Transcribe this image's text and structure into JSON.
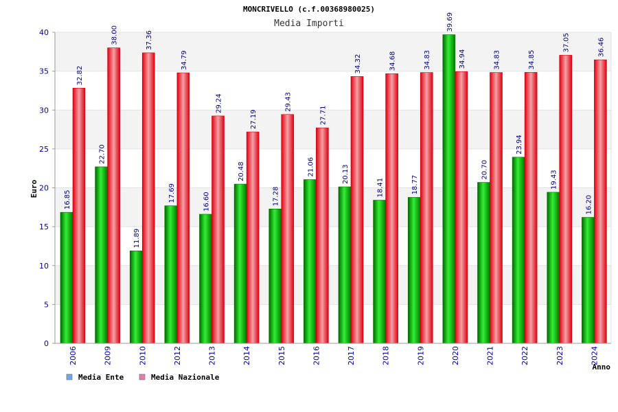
{
  "chart_data": {
    "type": "bar",
    "title": "MONCRIVELLO (c.f.00368980025)",
    "subtitle": "Media Importi",
    "xlabel": "Anno",
    "ylabel": "Euro",
    "ylim": [
      0,
      40
    ],
    "yticks": [
      "0",
      "5",
      "10",
      "15",
      "20",
      "25",
      "30",
      "35",
      "40"
    ],
    "grid": true,
    "legend_position": "bottom-left",
    "categories": [
      "2006",
      "2009",
      "2010",
      "2012",
      "2013",
      "2014",
      "2015",
      "2016",
      "2017",
      "2018",
      "2019",
      "2020",
      "2021",
      "2022",
      "2023",
      "2024"
    ],
    "series": [
      {
        "name": "Media Ente",
        "color": "#00a000",
        "legend_color": "#6fa8e8",
        "values": [
          16.85,
          22.7,
          11.89,
          17.69,
          16.6,
          20.48,
          17.28,
          21.06,
          20.13,
          18.41,
          18.77,
          39.69,
          20.7,
          23.94,
          19.43,
          16.2
        ],
        "labels": [
          "16.85",
          "22.70",
          "11.89",
          "17.69",
          "16.60",
          "20.48",
          "17.28",
          "21.06",
          "20.13",
          "18.41",
          "18.77",
          "39.69",
          "20.70",
          "23.94",
          "19.43",
          "16.20"
        ]
      },
      {
        "name": "Media Nazionale",
        "color": "#e8101a",
        "legend_color": "#e080b0",
        "values": [
          32.82,
          38.0,
          37.36,
          34.79,
          29.24,
          27.19,
          29.43,
          27.71,
          34.32,
          34.68,
          34.83,
          34.94,
          34.83,
          34.85,
          37.05,
          36.46
        ],
        "labels": [
          "32.82",
          "38.00",
          "37.36",
          "34.79",
          "29.24",
          "27.19",
          "29.43",
          "27.71",
          "34.32",
          "34.68",
          "34.83",
          "34.94",
          "34.83",
          "34.85",
          "37.05",
          "36.46"
        ]
      }
    ]
  }
}
